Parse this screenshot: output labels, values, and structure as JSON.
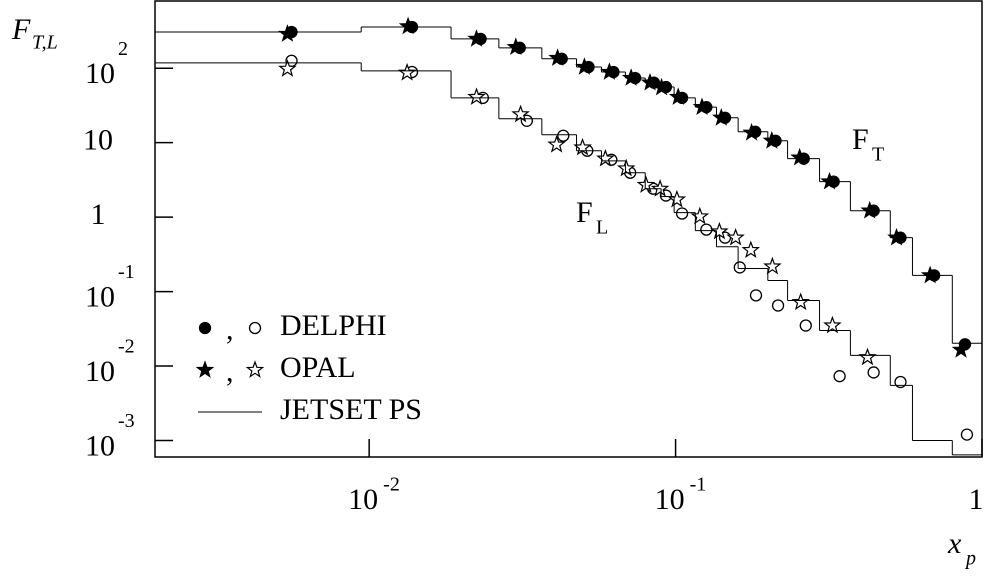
{
  "chart_data": {
    "type": "scatter",
    "xlog": true,
    "ylog": true,
    "xlim": [
      0.002,
      1
    ],
    "ylim": [
      0.0006,
      800
    ],
    "xticks": [
      {
        "value": 0.01,
        "label": "10",
        "sup": "-2"
      },
      {
        "value": 0.1,
        "label": "10",
        "sup": "-1"
      },
      1
    ],
    "yticks": [
      {
        "value": 0.001,
        "label": "10",
        "sup": "-3"
      },
      {
        "value": 0.01,
        "label": "10",
        "sup": "-2"
      },
      {
        "value": 0.1,
        "label": "10",
        "sup": "-1"
      },
      1,
      10,
      {
        "value": 100,
        "label": "10",
        "sup": "2"
      }
    ],
    "xlabel": "x",
    "xlabel_sub": "p",
    "ylabel": "F",
    "ylabel_sub": "T,L",
    "annotations": [
      {
        "text": "F",
        "sub": "T"
      },
      {
        "text": "F",
        "sub": "L"
      }
    ],
    "legend": "lower left",
    "legend_separator": ",",
    "series": [
      {
        "name": "DELPHI",
        "color": "#000000",
        "marker": "circle",
        "FT": {
          "filled": true,
          "x": [
            0.00558,
            0.0138,
            0.0231,
            0.031,
            0.0425,
            0.052,
            0.0627,
            0.0738,
            0.085,
            0.093,
            0.105,
            0.126,
            0.145,
            0.182,
            0.212,
            0.262,
            0.328,
            0.443,
            0.542,
            0.698,
            0.88
          ],
          "values": [
            307,
            358,
            248,
            188,
            134,
            104,
            89,
            74,
            64,
            56,
            40,
            30,
            21.6,
            14,
            10.6,
            6.1,
            3.0,
            1.22,
            0.53,
            0.165,
            0.0196
          ]
        },
        "FL": {
          "filled": false,
          "x": [
            0.00558,
            0.0138,
            0.0235,
            0.0327,
            0.043,
            0.0515,
            0.0617,
            0.0711,
            0.0845,
            0.093,
            0.105,
            0.126,
            0.145,
            0.162,
            0.183,
            0.216,
            0.266,
            0.343,
            0.443,
            0.542,
            0.893
          ],
          "values": [
            126,
            89,
            40,
            19.7,
            12.4,
            7.8,
            5.9,
            3.95,
            2.41,
            1.95,
            1.12,
            0.68,
            0.53,
            0.211,
            0.089,
            0.065,
            0.035,
            0.0073,
            0.0082,
            0.0061,
            0.0012
          ]
        }
      },
      {
        "name": "OPAL",
        "color": "#000000",
        "marker": "star",
        "FT": {
          "filled": true,
          "x": [
            0.00541,
            0.0134,
            0.0224,
            0.0301,
            0.0412,
            0.0504,
            0.0608,
            0.0716,
            0.0825,
            0.09,
            0.102,
            0.122,
            0.141,
            0.177,
            0.206,
            0.254,
            0.318,
            0.43,
            0.526,
            0.677,
            0.854
          ],
          "values": [
            289,
            365,
            248,
            192,
            137,
            104,
            89,
            74,
            64,
            55,
            41,
            30,
            21.6,
            13.6,
            10.6,
            6.3,
            3.0,
            1.22,
            0.53,
            0.165,
            0.0165
          ]
        },
        "FL": {
          "filled": false,
          "x": [
            0.00541,
            0.0133,
            0.0224,
            0.0312,
            0.0409,
            0.0497,
            0.059,
            0.069,
            0.08,
            0.089,
            0.101,
            0.12,
            0.139,
            0.157,
            0.176,
            0.207,
            0.256,
            0.325,
            0.423
          ],
          "values": [
            98,
            87,
            41,
            24,
            9.4,
            8.6,
            6.1,
            4.5,
            2.7,
            2.4,
            1.72,
            1.02,
            0.64,
            0.53,
            0.36,
            0.217,
            0.072,
            0.035,
            0.0131
          ]
        }
      },
      {
        "name": "JETSET PS",
        "color": "#000000",
        "marker": "step",
        "FT": {
          "bins": [
            0.002,
            0.00942,
            0.0185,
            0.0265,
            0.0366,
            0.0475,
            0.0573,
            0.0686,
            0.0796,
            0.0897,
            0.0989,
            0.116,
            0.136,
            0.16,
            0.2,
            0.232,
            0.295,
            0.372,
            0.502,
            0.593,
            0.8,
            1
          ],
          "values": [
            307,
            358,
            248,
            188,
            134,
            104,
            89,
            74,
            64,
            56,
            40,
            30,
            21.6,
            14,
            10.6,
            6.1,
            3.0,
            1.22,
            0.53,
            0.165,
            0.0202
          ]
        },
        "FL": {
          "bins": [
            0.002,
            0.00942,
            0.0185,
            0.0265,
            0.0366,
            0.0475,
            0.0573,
            0.0686,
            0.0796,
            0.0897,
            0.0989,
            0.116,
            0.136,
            0.16,
            0.2,
            0.232,
            0.295,
            0.372,
            0.502,
            0.593,
            0.8,
            1
          ],
          "values": [
            118,
            92,
            40,
            21,
            12.8,
            7.8,
            5.7,
            3.95,
            2.41,
            1.89,
            1.15,
            0.66,
            0.4,
            0.204,
            0.141,
            0.076,
            0.03,
            0.0139,
            0.0055,
            0.001,
            0.00064
          ]
        }
      }
    ]
  }
}
